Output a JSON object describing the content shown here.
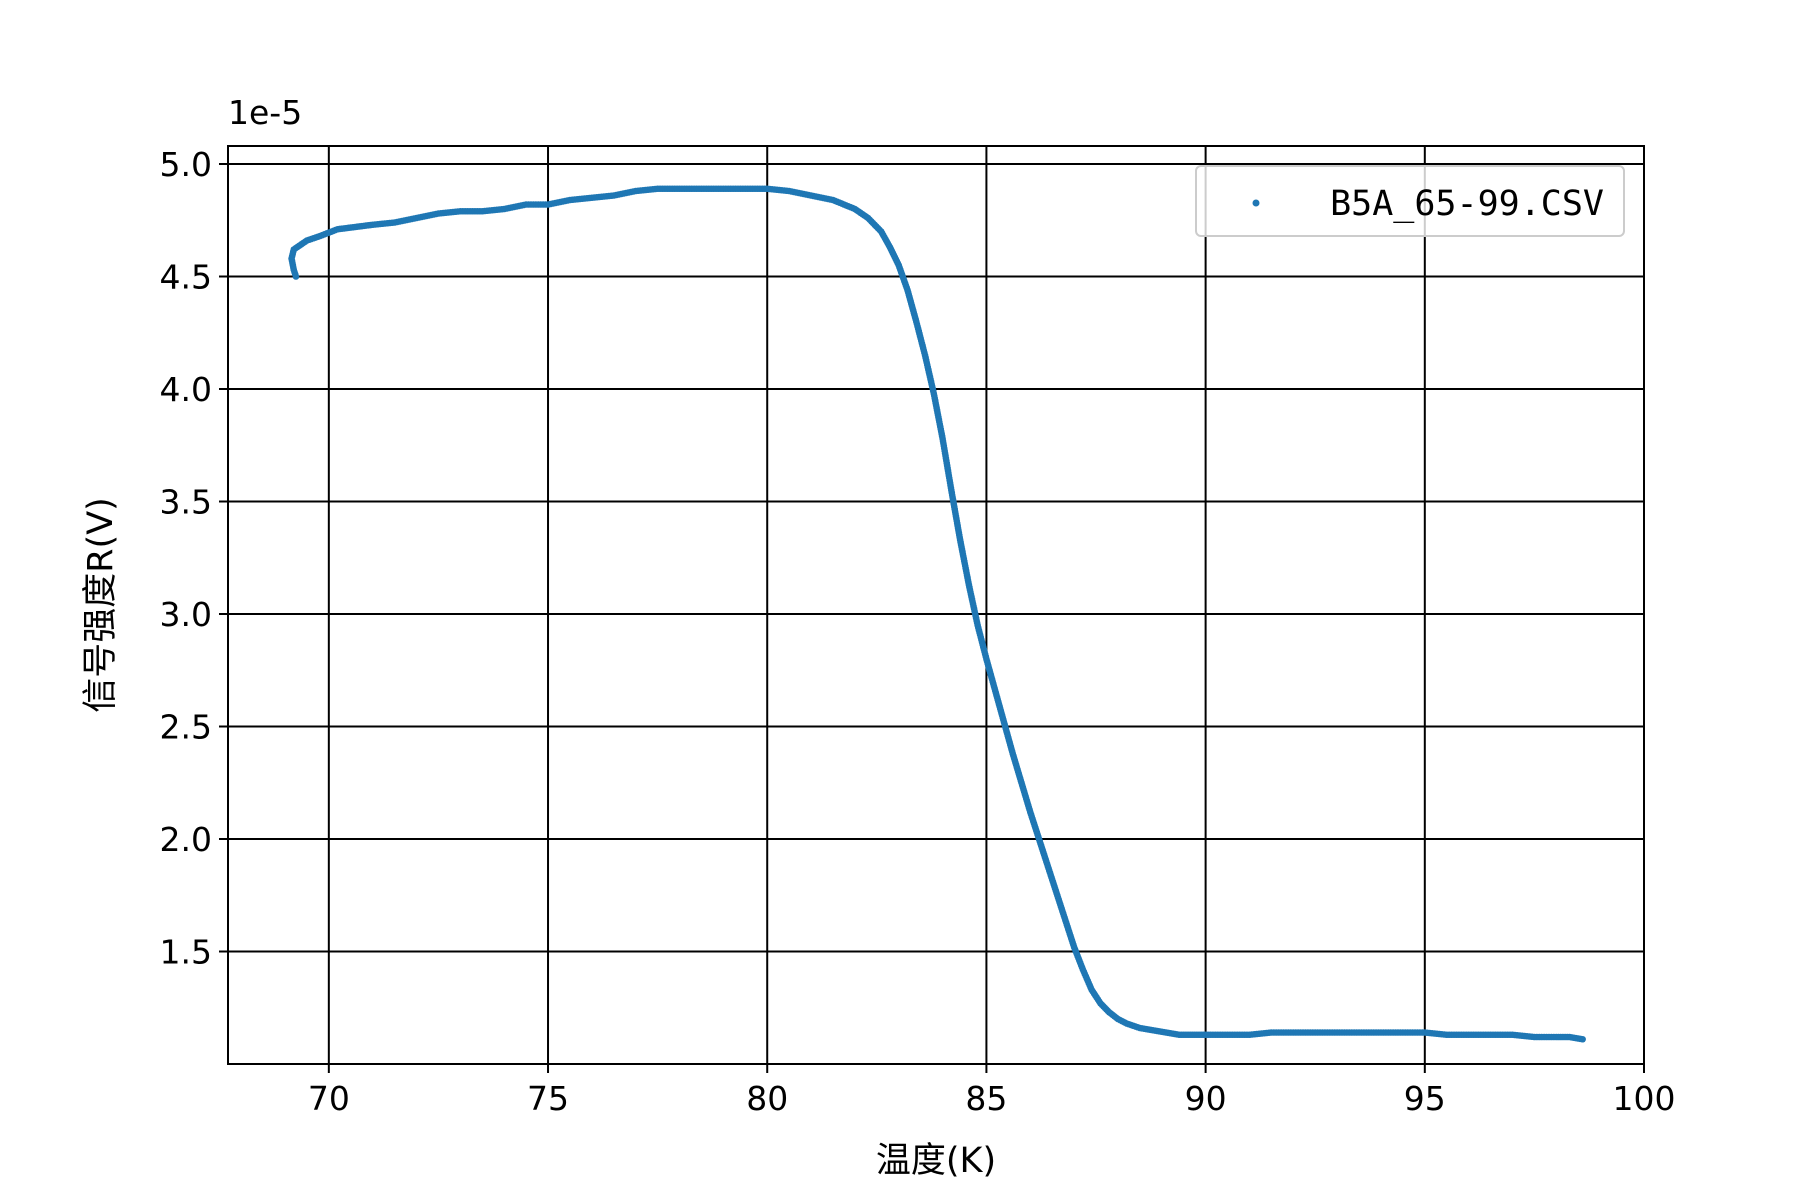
{
  "chart_data": {
    "type": "scatter",
    "xlabel": "温度(K)",
    "ylabel": "信号强度R(V)",
    "y_offset_label": "1e-5",
    "xlim": [
      67.7,
      100
    ],
    "ylim": [
      1.0,
      5.08
    ],
    "x_ticks": [
      70,
      75,
      80,
      85,
      90,
      95,
      100
    ],
    "x_tick_labels": [
      "70",
      "75",
      "80",
      "85",
      "90",
      "95",
      "100"
    ],
    "y_ticks": [
      1.5,
      2.0,
      2.5,
      3.0,
      3.5,
      4.0,
      4.5,
      5.0
    ],
    "y_tick_labels": [
      "1.5",
      "2.0",
      "2.5",
      "3.0",
      "3.5",
      "4.0",
      "4.5",
      "5.0"
    ],
    "grid": true,
    "legend_position": "top-right",
    "series": [
      {
        "name": "B5A_65-99.CSV",
        "color": "#1f77b4",
        "x": [
          69.25,
          69.2,
          69.15,
          69.2,
          69.5,
          69.8,
          70.2,
          70.6,
          71.0,
          71.5,
          72.0,
          72.5,
          73.0,
          73.5,
          74.0,
          74.5,
          75.0,
          75.5,
          76.0,
          76.5,
          77.0,
          77.5,
          78.0,
          78.5,
          79.0,
          79.5,
          80.0,
          80.5,
          81.0,
          81.5,
          82.0,
          82.3,
          82.6,
          82.8,
          83.0,
          83.2,
          83.4,
          83.6,
          83.8,
          84.0,
          84.2,
          84.4,
          84.6,
          84.8,
          85.0,
          85.2,
          85.4,
          85.6,
          85.8,
          86.0,
          86.2,
          86.4,
          86.6,
          86.8,
          87.0,
          87.2,
          87.4,
          87.6,
          87.8,
          88.0,
          88.2,
          88.5,
          88.8,
          89.1,
          89.4,
          89.7,
          90.0,
          90.5,
          91.0,
          91.5,
          92.0,
          92.5,
          93.0,
          93.5,
          94.0,
          94.5,
          95.0,
          95.5,
          96.0,
          96.5,
          97.0,
          97.5,
          98.0,
          98.3,
          98.6
        ],
        "y": [
          4.5,
          4.53,
          4.58,
          4.62,
          4.66,
          4.68,
          4.71,
          4.72,
          4.73,
          4.74,
          4.76,
          4.78,
          4.79,
          4.79,
          4.8,
          4.82,
          4.82,
          4.84,
          4.85,
          4.86,
          4.88,
          4.89,
          4.89,
          4.89,
          4.89,
          4.89,
          4.89,
          4.88,
          4.86,
          4.84,
          4.8,
          4.76,
          4.7,
          4.63,
          4.55,
          4.44,
          4.3,
          4.15,
          3.98,
          3.78,
          3.55,
          3.33,
          3.13,
          2.95,
          2.8,
          2.66,
          2.52,
          2.38,
          2.25,
          2.12,
          2.0,
          1.88,
          1.76,
          1.64,
          1.52,
          1.42,
          1.33,
          1.27,
          1.23,
          1.2,
          1.18,
          1.16,
          1.15,
          1.14,
          1.13,
          1.13,
          1.13,
          1.13,
          1.13,
          1.14,
          1.14,
          1.14,
          1.14,
          1.14,
          1.14,
          1.14,
          1.14,
          1.13,
          1.13,
          1.13,
          1.13,
          1.12,
          1.12,
          1.12,
          1.11
        ]
      }
    ]
  }
}
